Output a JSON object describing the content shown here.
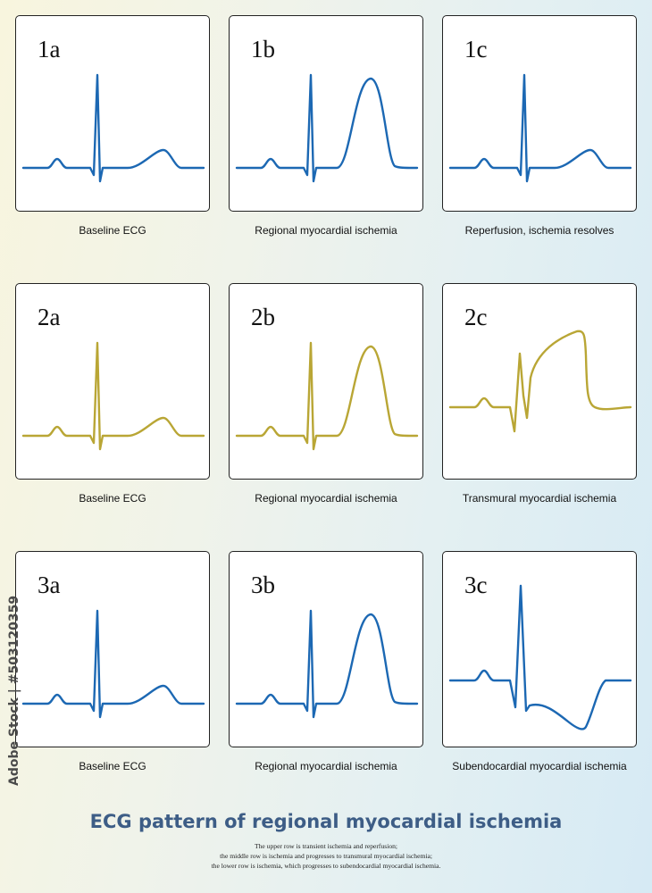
{
  "colors": {
    "blue": "#1c68b3",
    "olive": "#b9a635",
    "title": "#3d5d86"
  },
  "rows": [
    {
      "panels": [
        {
          "label": "1a",
          "caption": "Baseline ECG",
          "wave": "baseline",
          "color": "blue"
        },
        {
          "label": "1b",
          "caption": "Regional myocardial ischemia",
          "wave": "regional",
          "color": "blue"
        },
        {
          "label": "1c",
          "caption": "Reperfusion, ischemia resolves",
          "wave": "baseline",
          "color": "blue"
        }
      ]
    },
    {
      "panels": [
        {
          "label": "2a",
          "caption": "Baseline ECG",
          "wave": "baseline",
          "color": "olive"
        },
        {
          "label": "2b",
          "caption": "Regional myocardial ischemia",
          "wave": "regional",
          "color": "olive"
        },
        {
          "label": "2c",
          "caption": "Transmural myocardial ischemia",
          "wave": "transmural",
          "color": "olive"
        }
      ]
    },
    {
      "panels": [
        {
          "label": "3a",
          "caption": "Baseline ECG",
          "wave": "baseline",
          "color": "blue"
        },
        {
          "label": "3b",
          "caption": "Regional myocardial ischemia",
          "wave": "regional",
          "color": "blue"
        },
        {
          "label": "3c",
          "caption": "Subendocardial myocardial ischemia",
          "wave": "subendocardial",
          "color": "blue"
        }
      ]
    }
  ],
  "title": "ECG pattern of regional myocardial ischemia",
  "description": [
    "The upper row is transient ischemia and reperfusion;",
    "the middle row is ischemia and progresses to transmural myocardial ischemia;",
    "the lower row is ischemia, which progresses to subendocardial myocardial ischemia."
  ],
  "stock_id": "Adobe Stock | #503120359"
}
